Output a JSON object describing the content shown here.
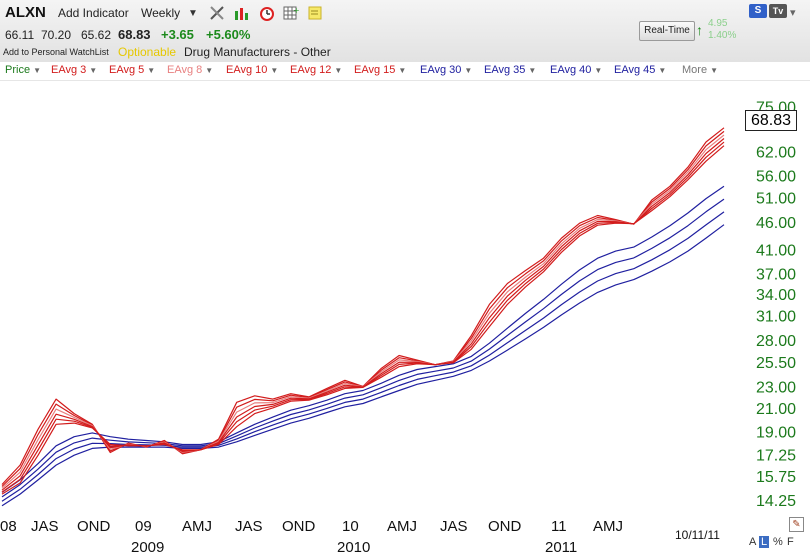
{
  "toolbar": {
    "symbol": "ALXN",
    "add_indicator": "Add Indicator",
    "period": "Weekly",
    "icons": [
      "tools-icon",
      "bar-chart-icon",
      "alarm-clock-icon",
      "grid-icon",
      "note-icon"
    ],
    "quote": {
      "open": "66.11",
      "high": "70.20",
      "low": "65.62",
      "close": "68.83",
      "change": "+3.65",
      "change_pct": "+5.60%"
    },
    "watchlist": "Add to Personal WatchList",
    "optionable": "Optionable",
    "industry": "Drug Manufacturers - Other",
    "realtime_label": "Real-Time",
    "realtime_change": "4.95",
    "realtime_pct": "1.40%",
    "s_btn": "S",
    "tv_btn": "Tv",
    "colors": {
      "up": "#1c8a1c",
      "optionable": "#e6c800"
    }
  },
  "legend": {
    "items": [
      {
        "label": "Price",
        "color": "#1c7a1c"
      },
      {
        "label": "EAvg 3",
        "color": "#d21c1c"
      },
      {
        "label": "EAvg 5",
        "color": "#d21c1c"
      },
      {
        "label": "EAvg 8",
        "color": "#e88080"
      },
      {
        "label": "EAvg 10",
        "color": "#d21c1c"
      },
      {
        "label": "EAvg 12",
        "color": "#d21c1c"
      },
      {
        "label": "EAvg 15",
        "color": "#d21c1c"
      },
      {
        "label": "EAvg 30",
        "color": "#2020a0"
      },
      {
        "label": "EAvg 35",
        "color": "#2020a0"
      },
      {
        "label": "EAvg 40",
        "color": "#2020a0"
      },
      {
        "label": "EAvg 45",
        "color": "#2020a0"
      },
      {
        "label": "More",
        "color": "#777777"
      }
    ]
  },
  "chart_data": {
    "type": "line",
    "symbol": "ALXN",
    "scale": "log",
    "last_price": "68.83",
    "y_ticks": [
      "75.00",
      "62.00",
      "56.00",
      "51.00",
      "46.00",
      "41.00",
      "37.00",
      "34.00",
      "31.00",
      "28.00",
      "25.50",
      "23.00",
      "21.00",
      "19.00",
      "17.25",
      "15.75",
      "14.25"
    ],
    "x_labels": [
      "08",
      "JAS",
      "OND",
      "09",
      "AMJ",
      "JAS",
      "OND",
      "10",
      "AMJ",
      "JAS",
      "OND",
      "11",
      "AMJ"
    ],
    "year_labels": [
      "2009",
      "2010",
      "2011"
    ],
    "date_label": "10/11/11",
    "x": [
      "2008-06",
      "2008-07",
      "2008-08",
      "2008-09",
      "2008-10",
      "2008-11",
      "2008-12",
      "2009-01",
      "2009-02",
      "2009-03",
      "2009-04",
      "2009-05",
      "2009-06",
      "2009-07",
      "2009-08",
      "2009-09",
      "2009-10",
      "2009-11",
      "2009-12",
      "2010-01",
      "2010-02",
      "2010-03",
      "2010-04",
      "2010-05",
      "2010-06",
      "2010-07",
      "2010-08",
      "2010-09",
      "2010-10",
      "2010-11",
      "2010-12",
      "2011-01",
      "2011-02",
      "2011-03",
      "2011-04",
      "2011-05",
      "2011-06",
      "2011-07",
      "2011-08",
      "2011-09",
      "2011-10"
    ],
    "series": [
      {
        "name": "EAvg 3",
        "color": "#d21c1c",
        "values": [
          15.2,
          16.5,
          19.2,
          21.8,
          20.5,
          19.6,
          17.4,
          18.1,
          17.8,
          18.3,
          17.3,
          17.6,
          18.4,
          21.5,
          22.1,
          21.8,
          22.3,
          22.0,
          22.8,
          23.6,
          23.0,
          24.8,
          26.2,
          25.7,
          25.2,
          25.6,
          28.5,
          32.5,
          35.5,
          37.5,
          39.5,
          43.0,
          45.8,
          47.3,
          46.5,
          45.6,
          50.5,
          53.5,
          58.0,
          64.5,
          68.5
        ]
      },
      {
        "name": "EAvg 15",
        "color": "#d21c1c",
        "values": [
          14.6,
          15.3,
          17.2,
          19.6,
          19.7,
          19.3,
          18.0,
          17.9,
          17.9,
          18.0,
          17.6,
          17.6,
          18.0,
          19.4,
          20.5,
          21.0,
          21.6,
          21.7,
          22.2,
          22.8,
          22.9,
          23.9,
          25.0,
          25.3,
          25.2,
          25.4,
          26.9,
          29.6,
          32.5,
          35.0,
          37.3,
          40.5,
          43.4,
          45.4,
          45.8,
          45.7,
          48.3,
          51.2,
          55.0,
          59.5,
          63.5
        ]
      },
      {
        "name": "EAvg 30",
        "color": "#2020a0",
        "values": [
          14.7,
          15.5,
          16.6,
          17.9,
          18.6,
          18.9,
          18.6,
          18.4,
          18.3,
          18.2,
          18.0,
          18.0,
          18.2,
          18.9,
          19.6,
          20.2,
          20.8,
          21.2,
          21.7,
          22.3,
          22.6,
          23.3,
          24.1,
          24.7,
          25.0,
          25.3,
          26.1,
          27.6,
          29.4,
          31.3,
          33.2,
          35.4,
          37.6,
          39.5,
          40.7,
          41.4,
          43.2,
          45.3,
          47.8,
          50.8,
          53.5
        ]
      },
      {
        "name": "EAvg 45",
        "color": "#2020a0",
        "values": [
          13.9,
          14.6,
          15.5,
          16.5,
          17.2,
          17.7,
          17.8,
          17.8,
          17.8,
          17.8,
          17.7,
          17.7,
          17.8,
          18.2,
          18.7,
          19.2,
          19.7,
          20.1,
          20.6,
          21.1,
          21.4,
          22.0,
          22.6,
          23.2,
          23.6,
          24.0,
          24.6,
          25.6,
          26.8,
          28.1,
          29.5,
          31.1,
          32.7,
          34.2,
          35.3,
          36.1,
          37.4,
          38.9,
          40.7,
          43.0,
          45.5
        ]
      }
    ],
    "ylim": [
      14.0,
      78.0
    ],
    "grid": false
  },
  "bottom_controls": {
    "a": "A",
    "l": "L",
    "pct": "%",
    "f": "F"
  }
}
